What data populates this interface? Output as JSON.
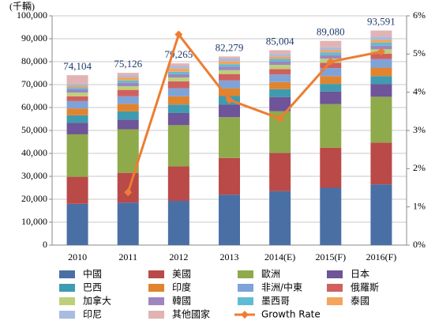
{
  "chart_data": {
    "type": "bar",
    "unit_label": "(千輛)",
    "categories": [
      "2010",
      "2011",
      "2012",
      "2013",
      "2014(E)",
      "2015(F)",
      "2016(F)"
    ],
    "series": [
      {
        "name": "中國",
        "color": "#4a6fa5",
        "values": [
          18000,
          18500,
          19300,
          22000,
          23500,
          25000,
          26500
        ]
      },
      {
        "name": "美國",
        "color": "#b94a48",
        "values": [
          11800,
          13000,
          15000,
          16000,
          16700,
          17500,
          18200
        ]
      },
      {
        "name": "歐洲",
        "color": "#8faa4a",
        "values": [
          18500,
          19000,
          18000,
          17800,
          18200,
          19000,
          20000
        ]
      },
      {
        "name": "日本",
        "color": "#6e5499",
        "values": [
          5000,
          4200,
          5300,
          5400,
          6200,
          5500,
          5600
        ]
      },
      {
        "name": "巴西",
        "color": "#3f9bb0",
        "values": [
          3300,
          3600,
          3700,
          3800,
          3400,
          3300,
          3400
        ]
      },
      {
        "name": "印度",
        "color": "#e0842f",
        "values": [
          3000,
          3300,
          3600,
          3400,
          3100,
          3400,
          3700
        ]
      },
      {
        "name": "非洲/中東",
        "color": "#7ea3d9",
        "values": [
          3200,
          3300,
          3500,
          3400,
          3300,
          3500,
          3700
        ]
      },
      {
        "name": "俄羅斯",
        "color": "#d0605e",
        "values": [
          2100,
          2800,
          3000,
          2800,
          2400,
          2300,
          2400
        ]
      },
      {
        "name": "加拿大",
        "color": "#bcd07b",
        "values": [
          1600,
          1600,
          1700,
          1700,
          1800,
          1800,
          1900
        ]
      },
      {
        "name": "韓國",
        "color": "#9e85c0",
        "values": [
          1500,
          1500,
          1500,
          1500,
          1500,
          1500,
          1600
        ]
      },
      {
        "name": "墨西哥",
        "color": "#5fbcd3",
        "values": [
          850,
          1000,
          1000,
          1100,
          1100,
          1200,
          1300
        ]
      },
      {
        "name": "泰國",
        "color": "#f4a45c",
        "values": [
          800,
          1400,
          1400,
          1300,
          1000,
          1000,
          1200
        ]
      },
      {
        "name": "印尼",
        "color": "#a9bbe0",
        "values": [
          800,
          900,
          1100,
          1200,
          1200,
          1300,
          1400
        ]
      },
      {
        "name": "其他國家",
        "color": "#e2b3b3",
        "values": [
          3654,
          1026,
          1165,
          879,
          1604,
          2780,
          2691
        ]
      },
      {
        "name": "Growth Rate",
        "color": "#ed7d31",
        "type": "line",
        "axis": "y2",
        "values": [
          null,
          1.38,
          5.51,
          3.8,
          3.31,
          4.8,
          5.06
        ]
      }
    ],
    "totals": {
      "values": [
        74104,
        75126,
        79265,
        82279,
        85004,
        89080,
        93591
      ],
      "value_labels": [
        "74,104",
        "75,126",
        "79,265",
        "82,279",
        "85,004",
        "89,080",
        "93,591"
      ]
    },
    "ylim": [
      0,
      100000
    ],
    "yticks": [
      0,
      {
        "value": 10000,
        "label": "10,000"
      },
      {
        "value": 20000,
        "label": "20,000"
      },
      {
        "value": 30000,
        "label": "30,000"
      },
      {
        "value": 40000,
        "label": "40,000"
      },
      {
        "value": 50000,
        "label": "50,000"
      },
      {
        "value": 60000,
        "label": "60,000"
      },
      {
        "value": 70000,
        "label": "70,000"
      },
      {
        "value": 80000,
        "label": "80,000"
      },
      {
        "value": 90000,
        "label": "90,000"
      },
      {
        "value": 100000,
        "label": "100,000"
      }
    ],
    "y2lim": [
      0,
      6
    ],
    "y2ticks": [
      {
        "value": 0,
        "label": "0%"
      },
      {
        "value": 1,
        "label": "1%"
      },
      {
        "value": 2,
        "label": "2%"
      },
      {
        "value": 3,
        "label": "3%"
      },
      {
        "value": 4,
        "label": "4%"
      },
      {
        "value": 5,
        "label": "5%"
      },
      {
        "value": 6,
        "label": "6%"
      }
    ],
    "grid": true
  }
}
